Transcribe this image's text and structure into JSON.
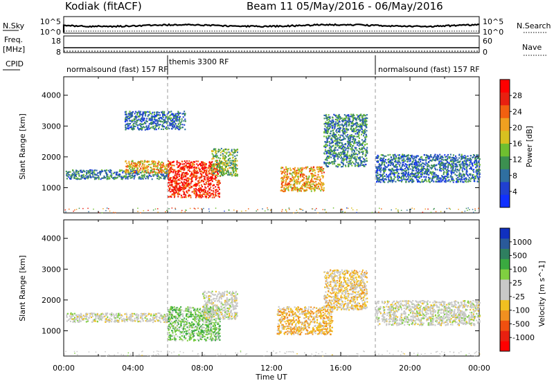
{
  "header": {
    "title": "Kodiak (fitACF)",
    "beam_date": "Beam 11 05/May/2016 - 06/May/2016"
  },
  "strips": {
    "nsky_label": "N.Sky",
    "nsky_ticks": [
      "10^5",
      "10^0"
    ],
    "nsearch_label": "N.Search",
    "nsearch_ticks": [
      "10^5",
      "10^0"
    ],
    "freq_label": "Freq.",
    "freq_unit": "[MHz]",
    "freq_ticks": [
      "18",
      "8"
    ],
    "nave_label": "Nave",
    "nave_ticks": [
      "60",
      "0"
    ],
    "cpid_label": "CPID",
    "cpid_segments": [
      {
        "name": "normalsound (fast) 157 RF",
        "start": 0,
        "end": 6
      },
      {
        "name": "themis 3300 RF",
        "start": 6,
        "end": 18
      },
      {
        "name": "normalsound (fast) 157 RF",
        "start": 18,
        "end": 24
      }
    ]
  },
  "colorbars": {
    "power_label": "Power [dB]",
    "power_ticks": [
      "4",
      "8",
      "12",
      "16",
      "20",
      "24",
      "28"
    ],
    "power_colors": [
      "#1030ff",
      "#2040d0",
      "#2f6fa0",
      "#3c9050",
      "#6fbf30",
      "#d8c020",
      "#f0a020",
      "#f26010",
      "#e82010",
      "#ff0000"
    ],
    "velocity_label": "Velocity [m s^-1]",
    "velocity_ticks": [
      "1000",
      "500",
      "100",
      "25",
      "-25",
      "-100",
      "-500",
      "-1000"
    ],
    "velocity_colors": [
      "#1030c0",
      "#2a5a9a",
      "#2f7f60",
      "#3aaa40",
      "#80d040",
      "#c8c8c8",
      "#c8c8c8",
      "#f0c020",
      "#f09020",
      "#f05010",
      "#e82010",
      "#ff0000"
    ]
  },
  "axes": {
    "xlabel": "Time UT",
    "x_ticks": [
      "00:00",
      "04:00",
      "08:00",
      "12:00",
      "16:00",
      "20:00",
      "00:00"
    ],
    "ylabel": "Slant Range [km]",
    "y_ticks": [
      "1000",
      "2000",
      "3000",
      "4000"
    ]
  },
  "chart_data": [
    {
      "type": "heatmap",
      "title": "Power",
      "xlabel": "",
      "ylabel": "Slant Range [km]",
      "xlim": [
        0,
        24
      ],
      "ylim": [
        180,
        4600
      ],
      "unit": "dB",
      "regions": [
        {
          "t0": 0.1,
          "t1": 6.0,
          "r0": 1300,
          "r1": 1600,
          "value": 9
        },
        {
          "t0": 3.5,
          "t1": 6.2,
          "r0": 1500,
          "r1": 1900,
          "value": 20
        },
        {
          "t0": 6.0,
          "t1": 9.0,
          "r0": 700,
          "r1": 1900,
          "value": 27
        },
        {
          "t0": 8.5,
          "t1": 10.0,
          "r0": 1400,
          "r1": 2300,
          "value": 14
        },
        {
          "t0": 3.5,
          "t1": 7.0,
          "r0": 2900,
          "r1": 3500,
          "value": 8
        },
        {
          "t0": 12.5,
          "t1": 15.0,
          "r0": 900,
          "r1": 1700,
          "value": 20
        },
        {
          "t0": 15.0,
          "t1": 17.5,
          "r0": 1700,
          "r1": 3400,
          "value": 10
        },
        {
          "t0": 18.0,
          "t1": 24.0,
          "r0": 1200,
          "r1": 2100,
          "value": 8
        }
      ],
      "cpid_changes": [
        6,
        18
      ]
    },
    {
      "type": "heatmap",
      "title": "Velocity",
      "xlabel": "Time UT",
      "ylabel": "Slant Range [km]",
      "xlim": [
        0,
        24
      ],
      "ylim": [
        180,
        4600
      ],
      "unit": "m s^-1",
      "regions": [
        {
          "t0": 0.1,
          "t1": 6.5,
          "r0": 1300,
          "r1": 1600,
          "value": 0
        },
        {
          "t0": 6.0,
          "t1": 9.0,
          "r0": 700,
          "r1": 1800,
          "value": 300
        },
        {
          "t0": 8.0,
          "t1": 10.0,
          "r0": 1400,
          "r1": 2300,
          "value": 0
        },
        {
          "t0": 12.3,
          "t1": 15.5,
          "r0": 900,
          "r1": 1800,
          "value": -300
        },
        {
          "t0": 15.0,
          "t1": 17.5,
          "r0": 1700,
          "r1": 3000,
          "value": -200
        },
        {
          "t0": 18.0,
          "t1": 24.0,
          "r0": 1200,
          "r1": 2000,
          "value": 0
        }
      ],
      "cpid_changes": [
        6,
        18
      ]
    }
  ]
}
